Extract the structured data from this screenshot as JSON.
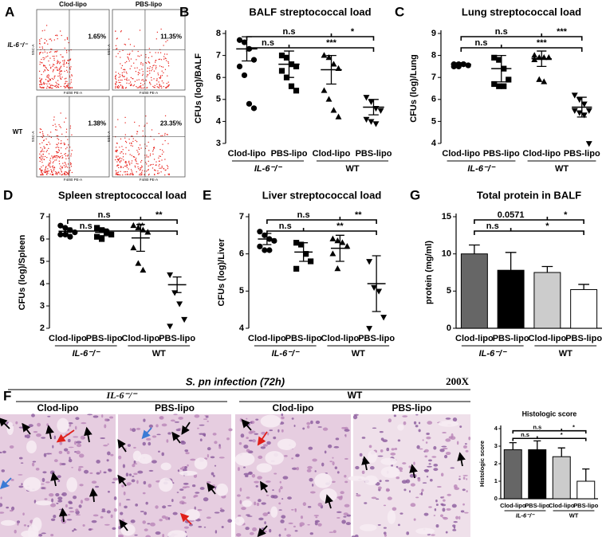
{
  "chart_data": [
    {
      "type": "dot",
      "panel": "B",
      "title": "BALF streptococcal load",
      "y_label": "CFUs (log)/BALF",
      "categories": [
        "Clod-lipo",
        "PBS-lipo",
        "Clod-lipo",
        "PBS-lipo"
      ],
      "group_labels": [
        "IL-6⁻/⁻",
        "WT"
      ],
      "markers": [
        "circle",
        "square",
        "triangle-up",
        "triangle-down"
      ],
      "points": [
        [
          7.7,
          7.6,
          7.3,
          6.8,
          6.5,
          6.1,
          4.8,
          4.6
        ],
        [
          7.0,
          6.9,
          6.6,
          6.5,
          6.3,
          6.0,
          5.6,
          5.4
        ],
        [
          7.0,
          6.9,
          6.6,
          6.4,
          5.4,
          5.0,
          4.5,
          4.2
        ],
        [
          5.1,
          4.9,
          4.6,
          4.5,
          4.1,
          4.0,
          3.9
        ]
      ],
      "means": [
        7.3,
        6.6,
        6.35,
        4.65
      ],
      "errors": [
        0.55,
        0.6,
        0.65,
        0.35
      ],
      "ylim": [
        3,
        8
      ],
      "yticks": [
        3,
        4,
        5,
        6,
        7,
        8
      ],
      "annotations": [
        "n.s",
        "*",
        "n.s",
        "***"
      ]
    },
    {
      "type": "dot",
      "panel": "C",
      "title": "Lung streptococcal load",
      "y_label": "CFUs (log)/Lung",
      "categories": [
        "Clod-lipo",
        "PBS-lipo",
        "Clod-lipo",
        "PBS-lipo"
      ],
      "group_labels": [
        "IL-6⁻/⁻",
        "WT"
      ],
      "markers": [
        "circle",
        "square",
        "triangle-up",
        "triangle-down"
      ],
      "points": [
        [
          7.6,
          7.6,
          7.6,
          7.55,
          7.5,
          7.5,
          7.6
        ],
        [
          7.9,
          7.8,
          7.4,
          6.9,
          6.7,
          6.6,
          6.6
        ],
        [
          8.0,
          7.9,
          7.9,
          7.9,
          7.8,
          6.9,
          6.8
        ],
        [
          6.2,
          6.0,
          5.8,
          5.5,
          5.5,
          5.4,
          5.3,
          4.0
        ]
      ],
      "means": [
        7.6,
        7.4,
        7.85,
        5.65
      ],
      "errors": [
        0.07,
        0.6,
        0.35,
        0.45
      ],
      "ylim": [
        4,
        9
      ],
      "yticks": [
        4,
        5,
        6,
        7,
        8,
        9
      ],
      "annotations": [
        "n.s",
        "***",
        "n.s",
        "***"
      ]
    },
    {
      "type": "dot",
      "panel": "D",
      "title": "Spleen streptococcal load",
      "y_label": "CFUs (log)/Spleen",
      "categories": [
        "Clod-lipo",
        "PBS-lipo",
        "Clod-lipo",
        "PBS-lipo"
      ],
      "group_labels": [
        "IL-6⁻/⁻",
        "WT"
      ],
      "markers": [
        "circle",
        "square",
        "triangle-up",
        "triangle-down"
      ],
      "points": [
        [
          6.6,
          6.5,
          6.4,
          6.3,
          6.2,
          6.2,
          6.1
        ],
        [
          6.5,
          6.4,
          6.3,
          6.2,
          6.1,
          6.0
        ],
        [
          6.6,
          6.5,
          6.4,
          6.3,
          5.6,
          4.9,
          4.6
        ],
        [
          4.4,
          3.6,
          3.1,
          2.4,
          2.1
        ]
      ],
      "means": [
        6.35,
        6.3,
        6.05,
        3.95
      ],
      "errors": [
        0.15,
        0.15,
        0.6,
        0.35
      ],
      "ylim": [
        2,
        7
      ],
      "yticks": [
        2,
        3,
        4,
        5,
        6,
        7
      ],
      "annotations": [
        "n.s",
        "**",
        "n.s",
        "**"
      ]
    },
    {
      "type": "dot",
      "panel": "E",
      "title": "Liver streptococcal load",
      "y_label": "CFUs (log)/Liver",
      "categories": [
        "Clod-lipo",
        "PBS-lipo",
        "Clod-lipo",
        "PBS-lipo"
      ],
      "group_labels": [
        "IL-6⁻/⁻",
        "WT"
      ],
      "markers": [
        "circle",
        "square",
        "triangle-up",
        "triangle-down"
      ],
      "points": [
        [
          6.6,
          6.5,
          6.4,
          6.35,
          6.2,
          6.1,
          6.1
        ],
        [
          6.3,
          6.25,
          6.0,
          5.8,
          5.6
        ],
        [
          6.4,
          6.35,
          6.3,
          6.2,
          6.0,
          5.6
        ],
        [
          5.8,
          5.1,
          5.0,
          4.3,
          4.0
        ]
      ],
      "means": [
        6.4,
        6.05,
        6.15,
        5.2
      ],
      "errors": [
        0.15,
        0.25,
        0.35,
        0.75
      ],
      "ylim": [
        4,
        7
      ],
      "yticks": [
        4,
        5,
        6,
        7
      ],
      "annotations": [
        "n.s",
        "**",
        "n.s",
        "**"
      ]
    },
    {
      "type": "bar",
      "panel": "G",
      "title": "Total protein in BALF",
      "y_label": "protein (mg/ml)",
      "categories": [
        "Clod-lipo",
        "PBS-lipo",
        "Clod-lipo",
        "PBS-lipo"
      ],
      "group_labels": [
        "IL-6⁻/⁻",
        "WT"
      ],
      "values": [
        10.0,
        7.8,
        7.5,
        5.2
      ],
      "errors": [
        1.2,
        2.4,
        0.8,
        0.7
      ],
      "colors": [
        "#666666",
        "#000000",
        "#cccccc",
        "#ffffff"
      ],
      "ylim": [
        0,
        15
      ],
      "yticks": [
        0,
        5,
        10,
        15
      ],
      "annotations": [
        "0.0571",
        "*",
        "n.s",
        "*"
      ]
    },
    {
      "type": "bar",
      "title": "Histologic score",
      "y_label": "Histologic score",
      "categories": [
        "Clod-lipo",
        "PBS-lipo",
        "Clod-lipo",
        "PBS-lipo"
      ],
      "group_labels": [
        "IL-6⁻/⁻",
        "WT"
      ],
      "values": [
        2.8,
        2.8,
        2.4,
        1.0
      ],
      "errors": [
        0.4,
        0.5,
        0.5,
        0.7
      ],
      "colors": [
        "#666666",
        "#000000",
        "#cccccc",
        "#ffffff"
      ],
      "ylim": [
        0,
        4
      ],
      "yticks": [
        0,
        1,
        2,
        3,
        4
      ],
      "annotations": [
        "n.s",
        "*",
        "n.s",
        "*"
      ]
    }
  ],
  "flow_cytometry": {
    "panel": "A",
    "columns": [
      "Clod-lipo",
      "PBS-lipo"
    ],
    "rows": [
      "IL-6⁻/⁻",
      "WT"
    ],
    "percentages": [
      [
        "1.65%",
        "11.35%"
      ],
      [
        "1.38%",
        "23.35%"
      ]
    ],
    "x_label": "F4/80 PE-A",
    "y_label": "SSC-A"
  },
  "histology": {
    "panel": "F",
    "title": "S. pn infection (72h)",
    "magnification": "200X",
    "groups": [
      {
        "label": "IL-6⁻/⁻",
        "columns": [
          "Clod-lipo",
          "PBS-lipo"
        ]
      },
      {
        "label": "WT",
        "columns": [
          "Clod-lipo",
          "PBS-lipo"
        ]
      }
    ]
  }
}
